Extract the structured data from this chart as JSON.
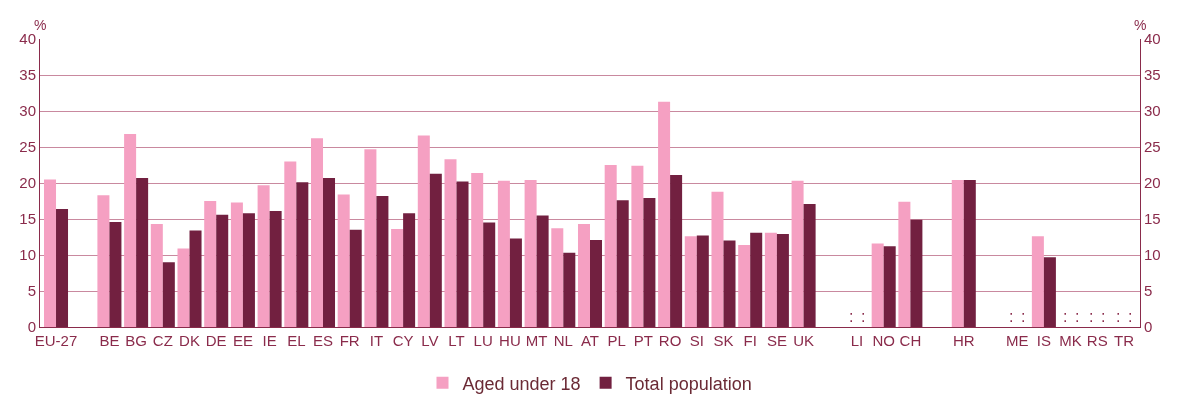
{
  "chart_data": {
    "type": "bar",
    "ylabel": "%",
    "y2label": "%",
    "categories": [
      "EU-27",
      null,
      "BE",
      "BG",
      "CZ",
      "DK",
      "DE",
      "EE",
      "IE",
      "EL",
      "ES",
      "FR",
      "IT",
      "CY",
      "LV",
      "LT",
      "LU",
      "HU",
      "MT",
      "NL",
      "AT",
      "PL",
      "PT",
      "RO",
      "SI",
      "SK",
      "FI",
      "SE",
      "UK",
      null,
      "LI",
      "NO",
      "CH",
      null,
      "HR",
      null,
      "ME",
      "IS",
      "MK",
      "RS",
      "TR"
    ],
    "series": [
      {
        "name": "Aged under 18",
        "color": "#f5a0c2",
        "values": [
          20.5,
          null,
          18.3,
          26.8,
          14.3,
          10.9,
          17.5,
          17.3,
          19.7,
          23.0,
          26.2,
          18.4,
          24.7,
          13.6,
          26.6,
          23.3,
          21.4,
          20.3,
          20.4,
          13.7,
          14.3,
          22.5,
          22.4,
          31.3,
          12.6,
          18.8,
          11.4,
          13.1,
          20.3,
          null,
          null,
          11.6,
          17.4,
          null,
          20.4,
          null,
          null,
          12.6,
          null,
          null,
          null
        ],
        "value_labels": [
          null,
          null,
          null,
          null,
          null,
          null,
          null,
          null,
          null,
          null,
          null,
          null,
          null,
          null,
          null,
          null,
          null,
          null,
          null,
          null,
          null,
          null,
          null,
          null,
          null,
          null,
          null,
          null,
          null,
          null,
          ":",
          null,
          null,
          null,
          null,
          null,
          ":",
          null,
          ":",
          ":",
          ":"
        ]
      },
      {
        "name": "Total population",
        "color": "#722040",
        "values": [
          16.4,
          null,
          14.6,
          20.7,
          9.0,
          13.4,
          15.6,
          15.8,
          16.1,
          20.1,
          20.7,
          13.5,
          18.2,
          15.8,
          21.3,
          20.2,
          14.5,
          12.3,
          15.5,
          10.3,
          12.1,
          17.6,
          17.9,
          21.1,
          12.7,
          12.0,
          13.1,
          12.9,
          17.1,
          null,
          null,
          11.2,
          14.9,
          null,
          20.4,
          null,
          null,
          9.7,
          null,
          null,
          null
        ],
        "value_labels": [
          null,
          null,
          null,
          null,
          null,
          null,
          null,
          null,
          null,
          null,
          null,
          null,
          null,
          null,
          null,
          null,
          null,
          null,
          null,
          null,
          null,
          null,
          null,
          null,
          null,
          null,
          null,
          null,
          null,
          null,
          ":",
          null,
          null,
          null,
          null,
          null,
          ":",
          null,
          ":",
          ":",
          ":"
        ]
      }
    ],
    "ylim": [
      0,
      40
    ],
    "yticks": [
      0,
      5,
      10,
      15,
      20,
      25,
      30,
      35,
      40
    ],
    "y2lim": [
      0,
      40
    ],
    "y2ticks": [
      0,
      5,
      10,
      15,
      20,
      25,
      30,
      35,
      40
    ],
    "grid": "y",
    "legend": "bottom"
  }
}
